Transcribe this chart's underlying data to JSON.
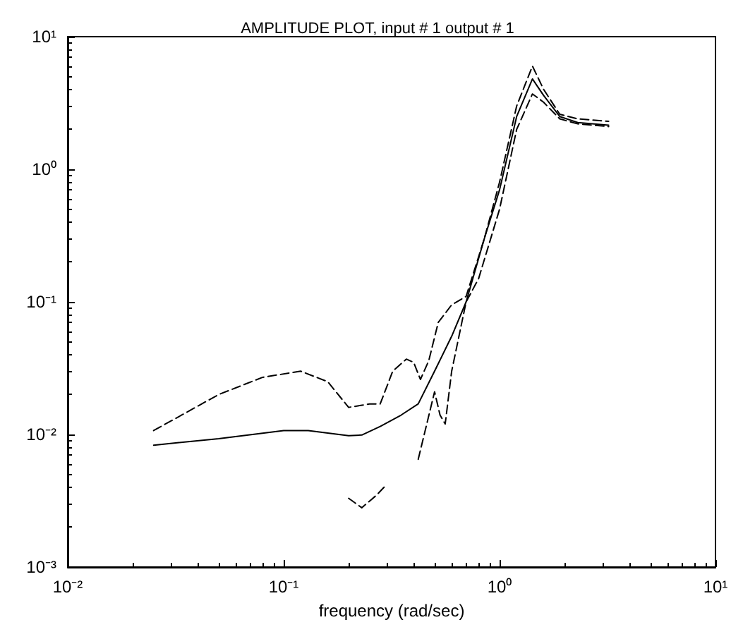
{
  "chart_data": {
    "type": "line",
    "title": "AMPLITUDE PLOT, input # 1 output # 1",
    "xlabel": "frequency (rad/sec)",
    "log": "xy",
    "grid": false,
    "marker": "none",
    "xlim": [
      0.01,
      10
    ],
    "xticks": [
      {
        "value": 0.01,
        "label": "10⁻²"
      },
      {
        "value": 0.1,
        "label": "10⁻¹"
      },
      {
        "value": 1,
        "label": "10⁰"
      },
      {
        "value": 10,
        "label": "10¹"
      }
    ],
    "ylim": [
      0.001,
      10
    ],
    "yticks": [
      {
        "value": 0.001,
        "label": "10⁻³"
      },
      {
        "value": 0.01,
        "label": "10⁻²"
      },
      {
        "value": 0.1,
        "label": "10⁻¹"
      },
      {
        "value": 1,
        "label": "10⁰"
      },
      {
        "value": 10,
        "label": "10¹"
      }
    ],
    "series": [
      {
        "color": "#000000",
        "line_style": "solid",
        "x": [
          0.025,
          0.05,
          0.1,
          0.13,
          0.2,
          0.23,
          0.28,
          0.35,
          0.42,
          0.5,
          0.6,
          0.7,
          0.85,
          1.0,
          1.2,
          1.42,
          1.6,
          1.9,
          2.3,
          3.2
        ],
        "values": [
          0.0083,
          0.0093,
          0.0107,
          0.0107,
          0.0098,
          0.0099,
          0.0115,
          0.014,
          0.017,
          0.03,
          0.055,
          0.1,
          0.3,
          0.7,
          2.5,
          4.8,
          3.6,
          2.5,
          2.25,
          2.15
        ]
      },
      {
        "color": "#000000",
        "line_style": "dashed",
        "x": [
          0.025,
          0.05,
          0.08,
          0.12,
          0.16,
          0.2,
          0.25,
          0.28,
          0.32,
          0.37,
          0.4,
          0.43,
          0.47,
          0.52,
          0.6,
          0.7,
          0.85,
          1.0,
          1.2,
          1.42,
          1.6,
          1.9,
          2.3,
          3.2
        ],
        "values": [
          0.0107,
          0.02,
          0.027,
          0.03,
          0.025,
          0.016,
          0.017,
          0.017,
          0.03,
          0.037,
          0.035,
          0.026,
          0.036,
          0.07,
          0.095,
          0.11,
          0.3,
          0.8,
          3,
          6,
          4,
          2.6,
          2.4,
          2.3
        ]
      },
      {
        "color": "#000000",
        "line_style": "dashed",
        "x": [
          0.2,
          0.23,
          0.27,
          0.3,
          0.35,
          0.42,
          0.5,
          0.53,
          0.56,
          0.6,
          0.7,
          0.8,
          1.0,
          1.2,
          1.42,
          1.6,
          1.9,
          2.3,
          3.2
        ],
        "values": [
          0.0033,
          0.0028,
          0.0035,
          0.0042,
          null,
          0.0065,
          0.021,
          0.014,
          0.012,
          0.03,
          0.1,
          0.15,
          0.5,
          2.0,
          3.7,
          3.2,
          2.4,
          2.2,
          2.1
        ]
      }
    ]
  }
}
